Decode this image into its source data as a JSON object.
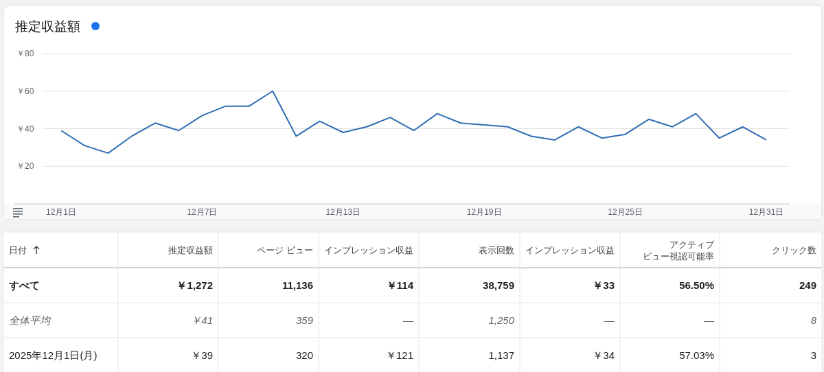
{
  "chart_data": [
    {
      "type": "line",
      "title": "推定収益額",
      "color": "#2f6db5",
      "categories": [
        "12月1日",
        null,
        null,
        null,
        null,
        null,
        "12月7日",
        null,
        null,
        null,
        null,
        null,
        "12月13日",
        null,
        null,
        null,
        null,
        null,
        "12月19日",
        null,
        null,
        null,
        null,
        null,
        "12月25日",
        null,
        null,
        null,
        null,
        null,
        "12月31日"
      ],
      "values": [
        39,
        31,
        27,
        36,
        43,
        39,
        47,
        52,
        52,
        60,
        36,
        44,
        38,
        41,
        46,
        39,
        48,
        43,
        42,
        41,
        36,
        34,
        41,
        35,
        37,
        45,
        41,
        48,
        35,
        41,
        34
      ],
      "ylim": [
        0,
        80
      ],
      "yticks": [
        {
          "value": 0,
          "label": null
        },
        {
          "value": 20,
          "label": "￥20"
        },
        {
          "value": 40,
          "label": "￥40"
        },
        {
          "value": 60,
          "label": "￥60"
        },
        {
          "value": 80,
          "label": "￥80"
        }
      ],
      "grid": "y",
      "marker": "none",
      "line_style": "solid"
    },
    {
      "type": "other",
      "annotations": [
        "日付",
        "推定収益額",
        "ページ ビュー",
        "インプレッション収益",
        "表示回数",
        "インプレッション収益",
        "アクティブビュー視認可能率",
        "クリック数",
        "すべて",
        "￥1,272",
        "11,136",
        "￥114",
        "38,759",
        "￥33",
        "56.50%",
        "249",
        "全体平均",
        "￥41",
        "359",
        "—",
        "1,250",
        "—",
        "—",
        "8",
        "2025年12月1日(月)",
        "￥39",
        "320",
        "￥121",
        "1,137",
        "￥34",
        "57.03%",
        "3"
      ]
    }
  ]
}
